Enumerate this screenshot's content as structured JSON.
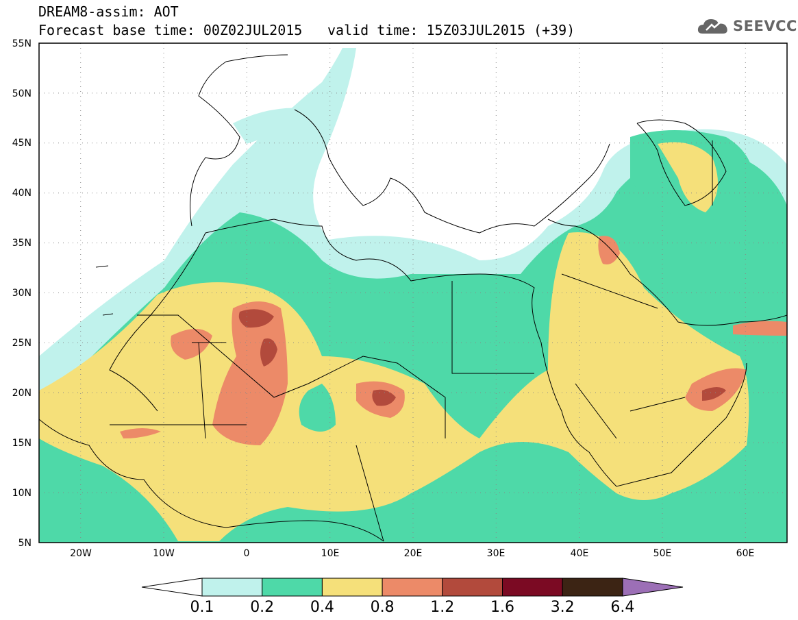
{
  "header": {
    "model_line": "DREAM8-assim: AOT",
    "base_time_line": "Forecast base time: 00Z02JUL2015",
    "valid_time_line": "valid time: 15Z03JUL2015 (+39)"
  },
  "logo": {
    "text": "SEEVCCC",
    "icon": "cloud-icon"
  },
  "map": {
    "variable": "AOT",
    "lon_range": [
      -25,
      65
    ],
    "lat_range": [
      5,
      55
    ],
    "lat_ticks": [
      "5N",
      "10N",
      "15N",
      "20N",
      "25N",
      "30N",
      "35N",
      "40N",
      "45N",
      "50N",
      "55N"
    ],
    "lon_ticks": [
      "20W",
      "10W",
      "0",
      "10E",
      "20E",
      "30E",
      "40E",
      "50E",
      "60E"
    ],
    "grid": "dotted"
  },
  "colorbar": {
    "labels": [
      "0.1",
      "0.2",
      "0.4",
      "0.8",
      "1.2",
      "1.6",
      "3.2",
      "6.4"
    ],
    "colors": [
      "#c0f2ec",
      "#4ed9a8",
      "#f5e07a",
      "#ec8a68",
      "#b24a3c",
      "#7b0a23",
      "#3c2414",
      "#9c6fb6"
    ],
    "under_color": "#ffffff"
  }
}
